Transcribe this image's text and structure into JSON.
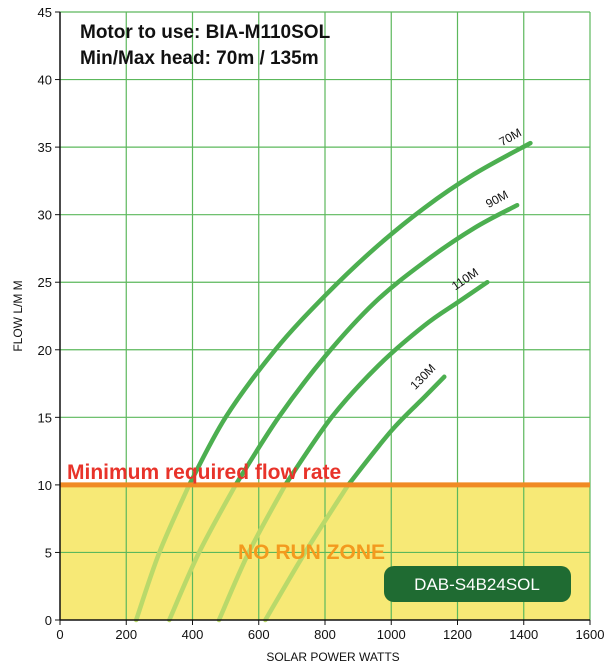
{
  "header": {
    "line1": "Motor to use: BIA-M110SOL",
    "line2": "Min/Max head: 70m / 135m"
  },
  "colors": {
    "grid": "#5cb85c",
    "curve": "#4caf50",
    "curve_faded": "#b9d96a",
    "threshold_line": "#f08a24",
    "no_run_fill": "#f7e976",
    "threshold_text": "#e8332a",
    "no_run_text": "#f39a1e",
    "model_badge_bg": "#1f6b32",
    "model_badge_text": "#ffffff"
  },
  "chart_data": {
    "type": "line",
    "xlabel": "SOLAR POWER WATTS",
    "ylabel": "FLOW L/M M",
    "xlim": [
      0,
      1600
    ],
    "ylim": [
      0,
      45
    ],
    "xticks": [
      0,
      200,
      400,
      600,
      800,
      1000,
      1200,
      1400,
      1600
    ],
    "yticks": [
      0,
      5,
      10,
      15,
      20,
      25,
      30,
      35,
      40,
      45
    ],
    "grid": true,
    "threshold": {
      "y": 10,
      "label": "Minimum required flow rate"
    },
    "zone": {
      "y_from": 0,
      "y_to": 10,
      "label": "NO RUN ZONE"
    },
    "model": "DAB-S4B24SOL",
    "series": [
      {
        "name": "70M",
        "x": [
          230,
          300,
          390,
          500,
          650,
          800,
          950,
          1100,
          1250,
          1420
        ],
        "y": [
          0,
          5,
          10,
          15,
          20,
          24,
          27.5,
          30.5,
          33,
          35.3
        ]
      },
      {
        "name": "90M",
        "x": [
          330,
          420,
          530,
          660,
          800,
          950,
          1100,
          1250,
          1380
        ],
        "y": [
          0,
          5,
          10,
          15,
          19.5,
          23.5,
          26.5,
          29,
          30.7
        ]
      },
      {
        "name": "110M",
        "x": [
          480,
          570,
          680,
          820,
          960,
          1100,
          1200,
          1290
        ],
        "y": [
          0,
          5,
          10,
          15,
          18.8,
          21.8,
          23.5,
          25
        ]
      },
      {
        "name": "130M",
        "x": [
          620,
          740,
          870,
          1000,
          1100,
          1160
        ],
        "y": [
          0,
          5,
          10,
          14,
          16.5,
          18
        ]
      }
    ]
  }
}
